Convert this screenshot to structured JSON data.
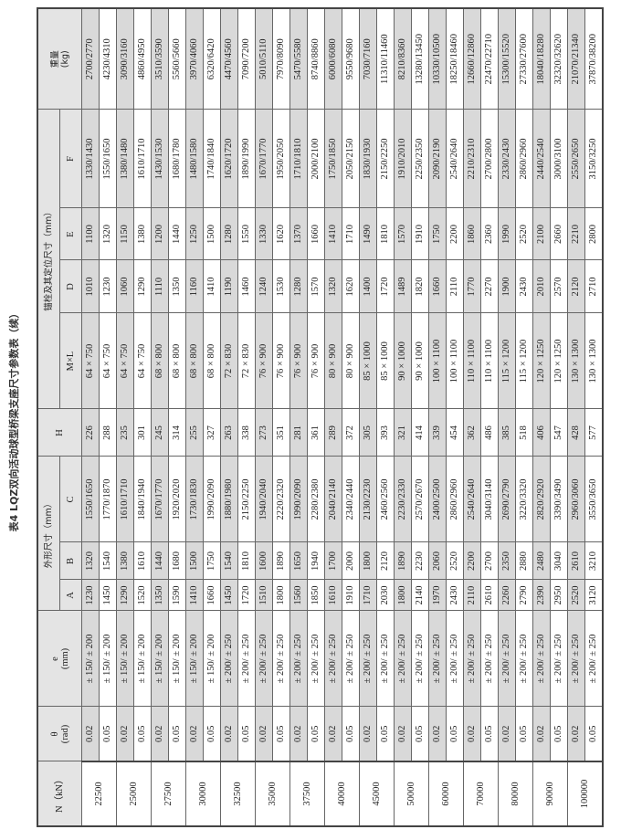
{
  "title": "表4  LQZ双向活动球型桥梁支座尺寸参数表（续）",
  "header": {
    "n": "N（kN）",
    "theta": "θ",
    "theta_unit": "(rad)",
    "e": "e",
    "e_unit": "(mm)",
    "outer_group": "外形尺寸（mm）",
    "a": "A",
    "b": "B",
    "c": "C",
    "h": "H",
    "anchor_group": "锚栓及其定位尺寸（mm）",
    "ml": "M×L",
    "d": "D",
    "e2": "E",
    "f": "F",
    "weight": "重量",
    "weight_unit": "(kg)"
  },
  "colors": {
    "shade": "#d9d9d9",
    "header": "#e4e4e4"
  },
  "groups": [
    {
      "n": "22500",
      "rows": [
        [
          "0.02",
          "± 150/ ± 200",
          "1230",
          "1320",
          "1550/1650",
          "226",
          "64 × 750",
          "1010",
          "1100",
          "1330/1430",
          "2700/2770"
        ],
        [
          "0.05",
          "± 150/ ± 200",
          "1450",
          "1540",
          "1770/1870",
          "288",
          "64 × 750",
          "1230",
          "1320",
          "1550/1650",
          "4230/4310"
        ]
      ]
    },
    {
      "n": "25000",
      "rows": [
        [
          "0.02",
          "± 150/ ± 200",
          "1290",
          "1380",
          "1610/1710",
          "235",
          "64 × 750",
          "1060",
          "1150",
          "1380/1480",
          "3090/3160"
        ],
        [
          "0.05",
          "± 150/ ± 200",
          "1520",
          "1610",
          "1840/1940",
          "301",
          "64 × 750",
          "1290",
          "1380",
          "1610/1710",
          "4860/4950"
        ]
      ]
    },
    {
      "n": "27500",
      "rows": [
        [
          "0.02",
          "± 150/ ± 200",
          "1350",
          "1440",
          "1670/1770",
          "245",
          "68 × 800",
          "1110",
          "1200",
          "1430/1530",
          "3510/3590"
        ],
        [
          "0.05",
          "± 150/ ± 200",
          "1590",
          "1680",
          "1920/2020",
          "314",
          "68 × 800",
          "1350",
          "1440",
          "1680/1780",
          "5560/5660"
        ]
      ]
    },
    {
      "n": "30000",
      "rows": [
        [
          "0.02",
          "± 150/ ± 200",
          "1410",
          "1500",
          "1730/1830",
          "255",
          "68 × 800",
          "1160",
          "1250",
          "1480/1580",
          "3970/4060"
        ],
        [
          "0.05",
          "± 150/ ± 200",
          "1660",
          "1750",
          "1990/2090",
          "327",
          "68 × 800",
          "1410",
          "1500",
          "1740/1840",
          "6320/6420"
        ]
      ]
    },
    {
      "n": "32500",
      "rows": [
        [
          "0.02",
          "± 200/ ± 250",
          "1450",
          "1540",
          "1880/1980",
          "263",
          "72 × 830",
          "1190",
          "1280",
          "1620/1720",
          "4470/4560"
        ],
        [
          "0.05",
          "± 200/ ± 250",
          "1720",
          "1810",
          "2150/2250",
          "338",
          "72 × 830",
          "1460",
          "1550",
          "1890/1990",
          "7090/7200"
        ]
      ]
    },
    {
      "n": "35000",
      "rows": [
        [
          "0.02",
          "± 200/ ± 250",
          "1510",
          "1600",
          "1940/2040",
          "273",
          "76 × 900",
          "1240",
          "1330",
          "1670/1770",
          "5010/5110"
        ],
        [
          "0.05",
          "± 200/ ± 250",
          "1800",
          "1890",
          "2220/2320",
          "351",
          "76 × 900",
          "1530",
          "1620",
          "1950/2050",
          "7970/8090"
        ]
      ]
    },
    {
      "n": "37500",
      "rows": [
        [
          "0.02",
          "± 200/ ± 250",
          "1560",
          "1650",
          "1990/2090",
          "281",
          "76 × 900",
          "1280",
          "1370",
          "1710/1810",
          "5470/5580"
        ],
        [
          "0.05",
          "± 200/ ± 250",
          "1850",
          "1940",
          "2280/2380",
          "361",
          "76 × 900",
          "1570",
          "1660",
          "2000/2100",
          "8740/8860"
        ]
      ]
    },
    {
      "n": "40000",
      "rows": [
        [
          "0.02",
          "± 200/ ± 250",
          "1610",
          "1700",
          "2040/2140",
          "289",
          "80 × 900",
          "1320",
          "1410",
          "1750/1850",
          "6000/6080"
        ],
        [
          "0.05",
          "± 200/ ± 250",
          "1910",
          "2000",
          "2340/2440",
          "372",
          "80 × 900",
          "1620",
          "1710",
          "2050/2150",
          "9550/9680"
        ]
      ]
    },
    {
      "n": "45000",
      "rows": [
        [
          "0.02",
          "± 200/ ± 250",
          "1710",
          "1800",
          "2130/2230",
          "305",
          "85 × 1000",
          "1400",
          "1490",
          "1830/1930",
          "7030/7160"
        ],
        [
          "0.05",
          "± 200/ ± 250",
          "2030",
          "2120",
          "2460/2560",
          "393",
          "85 × 1000",
          "1720",
          "1810",
          "2150/2250",
          "11310/11460"
        ]
      ]
    },
    {
      "n": "50000",
      "rows": [
        [
          "0.02",
          "± 200/ ± 250",
          "1800",
          "1890",
          "2230/2330",
          "321",
          "90 × 1000",
          "1489",
          "1570",
          "1910/2010",
          "8210/8360"
        ],
        [
          "0.05",
          "± 200/ ± 250",
          "2140",
          "2230",
          "2570/2670",
          "414",
          "90 × 1000",
          "1820",
          "1910",
          "2250/2350",
          "13280/13450"
        ]
      ]
    },
    {
      "n": "60000",
      "rows": [
        [
          "0.02",
          "± 200/ ± 250",
          "1970",
          "2060",
          "2400/2500",
          "339",
          "100 × 1100",
          "1660",
          "1750",
          "2090/2190",
          "10330/10500"
        ],
        [
          "0.05",
          "± 200/ ± 250",
          "2430",
          "2520",
          "2860/2960",
          "454",
          "100 × 1100",
          "2110",
          "2200",
          "2540/2640",
          "18250/18460"
        ]
      ]
    },
    {
      "n": "70000",
      "rows": [
        [
          "0.02",
          "± 200/ ± 250",
          "2110",
          "2200",
          "2540/2640",
          "362",
          "110 × 1100",
          "1770",
          "1860",
          "2210/2310",
          "12660/12860"
        ],
        [
          "0.05",
          "± 200/ ± 250",
          "2610",
          "2700",
          "3040/3140",
          "486",
          "110 × 1100",
          "2270",
          "2360",
          "2700/2800",
          "22470/22710"
        ]
      ]
    },
    {
      "n": "80000",
      "rows": [
        [
          "0.02",
          "± 200/ ± 250",
          "2260",
          "2350",
          "2690/2790",
          "385",
          "115 × 1200",
          "1900",
          "1990",
          "2330/2430",
          "15300/15520"
        ],
        [
          "0.05",
          "± 200/ ± 250",
          "2790",
          "2880",
          "3220/3320",
          "518",
          "115 × 1200",
          "2430",
          "2520",
          "2860/2960",
          "27330/27600"
        ]
      ]
    },
    {
      "n": "90000",
      "rows": [
        [
          "0.02",
          "± 200/ ± 250",
          "2390",
          "2480",
          "2820/2920",
          "406",
          "120 × 1250",
          "2010",
          "2100",
          "2440/2540",
          "18040/18280"
        ],
        [
          "0.05",
          "± 200/ ± 250",
          "2950",
          "3040",
          "3390/3490",
          "547",
          "120 × 1250",
          "2570",
          "2660",
          "3000/3100",
          "32320/32620"
        ]
      ]
    },
    {
      "n": "100000",
      "rows": [
        [
          "0.02",
          "± 200/ ± 250",
          "2520",
          "2610",
          "2960/3060",
          "428",
          "130 × 1300",
          "2120",
          "2210",
          "2550/2650",
          "21070/21340"
        ],
        [
          "0.05",
          "± 200/ ± 250",
          "3120",
          "3210",
          "3550/3650",
          "577",
          "130 × 1300",
          "2710",
          "2800",
          "3150/3250",
          "37870/38200"
        ]
      ]
    }
  ]
}
